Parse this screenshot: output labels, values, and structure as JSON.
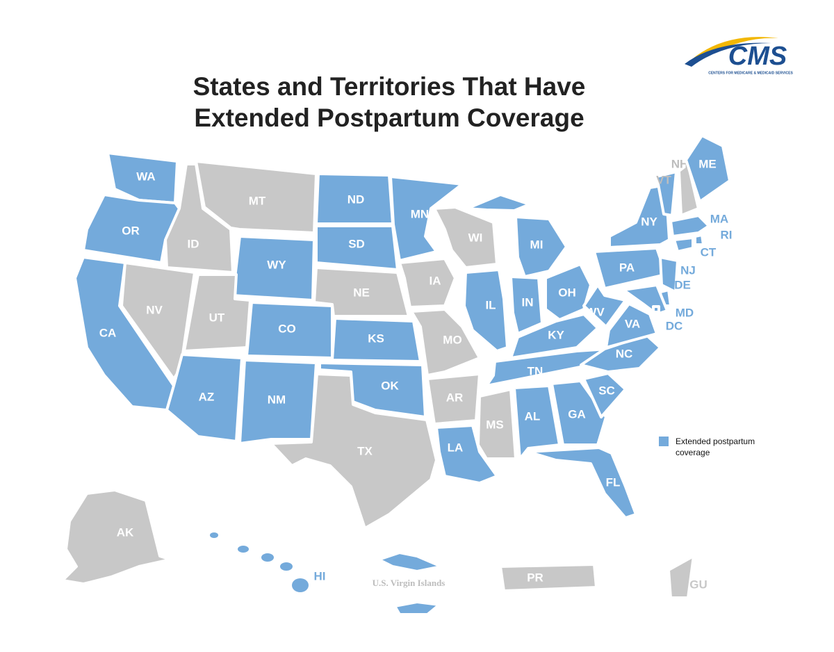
{
  "logo": {
    "mark": "CMS",
    "subtitle": "CENTERS FOR MEDICARE & MEDICAID SERVICES"
  },
  "header": {
    "title_lines": [
      "States and Territories That Have",
      "Extended Postpartum Coverage"
    ]
  },
  "legend": {
    "label": "Extended postpartum coverage"
  },
  "extended_color": "#74aadb",
  "other_color": "#c8c8c8",
  "regions": [
    {
      "label": "WA",
      "extended": true
    },
    {
      "label": "OR",
      "extended": true
    },
    {
      "label": "CA",
      "extended": true
    },
    {
      "label": "NV",
      "extended": false
    },
    {
      "label": "ID",
      "extended": false
    },
    {
      "label": "MT",
      "extended": false
    },
    {
      "label": "WY",
      "extended": true
    },
    {
      "label": "UT",
      "extended": false
    },
    {
      "label": "CO",
      "extended": true
    },
    {
      "label": "AZ",
      "extended": true
    },
    {
      "label": "NM",
      "extended": true
    },
    {
      "label": "ND",
      "extended": true
    },
    {
      "label": "SD",
      "extended": true
    },
    {
      "label": "NE",
      "extended": false
    },
    {
      "label": "KS",
      "extended": true
    },
    {
      "label": "OK",
      "extended": true
    },
    {
      "label": "TX",
      "extended": false
    },
    {
      "label": "MN",
      "extended": true
    },
    {
      "label": "IA",
      "extended": false
    },
    {
      "label": "MO",
      "extended": false
    },
    {
      "label": "AR",
      "extended": false
    },
    {
      "label": "LA",
      "extended": true
    },
    {
      "label": "WI",
      "extended": false
    },
    {
      "label": "IL",
      "extended": true
    },
    {
      "label": "IN",
      "extended": true
    },
    {
      "label": "MI",
      "extended": true
    },
    {
      "label": "OH",
      "extended": true
    },
    {
      "label": "KY",
      "extended": true
    },
    {
      "label": "TN",
      "extended": true
    },
    {
      "label": "MS",
      "extended": false
    },
    {
      "label": "AL",
      "extended": true
    },
    {
      "label": "GA",
      "extended": true
    },
    {
      "label": "FL",
      "extended": true
    },
    {
      "label": "SC",
      "extended": true
    },
    {
      "label": "NC",
      "extended": true
    },
    {
      "label": "VA",
      "extended": true
    },
    {
      "label": "WV",
      "extended": true
    },
    {
      "label": "PA",
      "extended": true
    },
    {
      "label": "NY",
      "extended": true
    },
    {
      "label": "VT",
      "extended": true
    },
    {
      "label": "NH",
      "extended": false
    },
    {
      "label": "ME",
      "extended": true
    },
    {
      "label": "MA",
      "extended": true
    },
    {
      "label": "RI",
      "extended": true
    },
    {
      "label": "CT",
      "extended": true
    },
    {
      "label": "NJ",
      "extended": true
    },
    {
      "label": "DE",
      "extended": true
    },
    {
      "label": "MD",
      "extended": true
    },
    {
      "label": "DC",
      "extended": true
    },
    {
      "label": "AK",
      "extended": false
    },
    {
      "label": "HI",
      "extended": true
    },
    {
      "label": "U.S. Virgin Islands",
      "extended": true
    },
    {
      "label": "PR",
      "extended": false
    },
    {
      "label": "GU",
      "extended": false
    }
  ]
}
